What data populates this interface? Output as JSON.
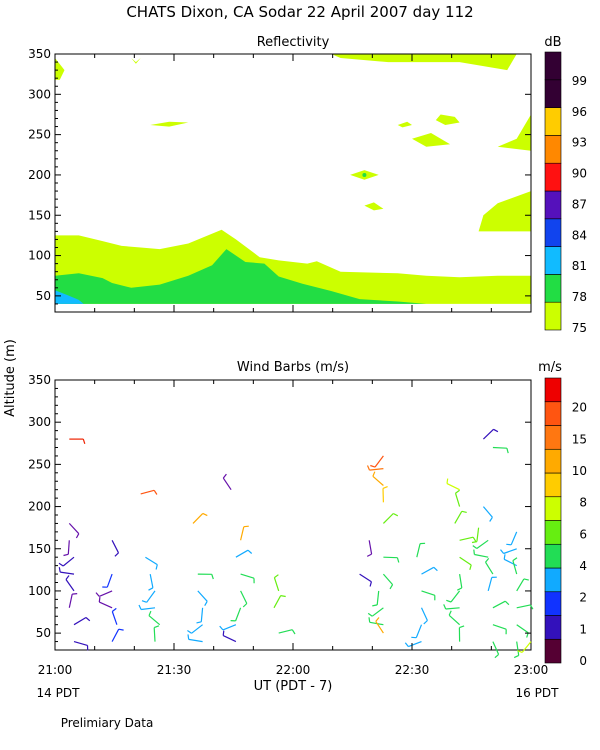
{
  "title": "CHATS Dixon, CA  Sodar  22 April 2007  day 112",
  "panels": {
    "reflectivity": {
      "title": "Reflectivity",
      "unit": "dB"
    },
    "wind": {
      "title": "Wind Barbs (m/s)",
      "unit": "m/s"
    }
  },
  "ylabel": "Altitude (m)",
  "xlabel": "UT  (PDT - 7)",
  "x_ticks": [
    "21:00",
    "21:30",
    "22:00",
    "22:30",
    "23:00"
  ],
  "x_left_note": "14 PDT",
  "x_right_note": "16 PDT",
  "footer_note": "Prelimiary Data",
  "y_ticks": [
    "50",
    "100",
    "150",
    "200",
    "250",
    "300",
    "350"
  ],
  "chart_data": [
    {
      "type": "heatmap",
      "title": "Reflectivity",
      "ylim": [
        30,
        350
      ],
      "colorbar": {
        "unit": "dB",
        "labels": [
          "75",
          "78",
          "81",
          "84",
          "87",
          "90",
          "93",
          "96",
          "99"
        ],
        "colors": [
          "#ccff00",
          "#22dd44",
          "#11bbff",
          "#1144ee",
          "#5511bb",
          "#ff1111",
          "#ff8800",
          "#ffcc00",
          "#330033",
          "#330033"
        ]
      },
      "regions": [
        {
          "level": "75",
          "color": "#ccff00",
          "points": [
            [
              0,
              40
            ],
            [
              0,
              125
            ],
            [
              5,
              125
            ],
            [
              10,
              118
            ],
            [
              14,
              112
            ],
            [
              18,
              110
            ],
            [
              22,
              108
            ],
            [
              28,
              115
            ],
            [
              35,
              132
            ],
            [
              38,
              120
            ],
            [
              43,
              98
            ],
            [
              47,
              94
            ],
            [
              53,
              90
            ],
            [
              55,
              93
            ],
            [
              60,
              80
            ],
            [
              72,
              78
            ],
            [
              78,
              75
            ],
            [
              85,
              73
            ],
            [
              93,
              75
            ],
            [
              100,
              75
            ],
            [
              100,
              40
            ]
          ]
        },
        {
          "level": "75",
          "color": "#ccff00",
          "points": [
            [
              0,
              345
            ],
            [
              2,
              330
            ],
            [
              1,
              318
            ],
            [
              0,
              318
            ]
          ]
        },
        {
          "level": "75",
          "color": "#ccff00",
          "points": [
            [
              16,
              345
            ],
            [
              17,
              340
            ],
            [
              18,
              345
            ],
            [
              17,
              338
            ]
          ]
        },
        {
          "level": "75",
          "color": "#ccff00",
          "points": [
            [
              58,
              350
            ],
            [
              97,
              350
            ],
            [
              95,
              330
            ],
            [
              85,
              340
            ],
            [
              70,
              340
            ],
            [
              60,
              345
            ]
          ]
        },
        {
          "level": "75",
          "color": "#ccff00",
          "points": [
            [
              81,
              275
            ],
            [
              84,
              272
            ],
            [
              85,
              265
            ],
            [
              82,
              262
            ],
            [
              80,
              268
            ]
          ]
        },
        {
          "level": "75",
          "color": "#ccff00",
          "points": [
            [
              100,
              275
            ],
            [
              97,
              245
            ],
            [
              93,
              235
            ],
            [
              100,
              230
            ]
          ]
        },
        {
          "level": "75",
          "color": "#ccff00",
          "points": [
            [
              20,
              262
            ],
            [
              24,
              266
            ],
            [
              28,
              265
            ],
            [
              24,
              260
            ]
          ]
        },
        {
          "level": "75",
          "color": "#ccff00",
          "points": [
            [
              72,
              262
            ],
            [
              74,
              266
            ],
            [
              75,
              262
            ],
            [
              73,
              259
            ]
          ]
        },
        {
          "level": "75",
          "color": "#ccff00",
          "points": [
            [
              75,
              245
            ],
            [
              79,
              252
            ],
            [
              83,
              238
            ],
            [
              78,
              235
            ]
          ]
        },
        {
          "level": "75",
          "color": "#ccff00",
          "points": [
            [
              62,
              200
            ],
            [
              65,
              206
            ],
            [
              68,
              200
            ],
            [
              65,
              194
            ]
          ]
        },
        {
          "level": "75",
          "color": "#ccff00",
          "points": [
            [
              65,
              162
            ],
            [
              67,
              166
            ],
            [
              69,
              158
            ],
            [
              67,
              156
            ]
          ]
        },
        {
          "level": "75",
          "color": "#ccff00",
          "points": [
            [
              89,
              130
            ],
            [
              90,
              150
            ],
            [
              93,
              165
            ],
            [
              100,
              180
            ],
            [
              100,
              130
            ]
          ]
        },
        {
          "level": "78",
          "color": "#22dd44",
          "points": [
            [
              0,
              40
            ],
            [
              0,
              75
            ],
            [
              5,
              78
            ],
            [
              10,
              72
            ],
            [
              12,
              66
            ],
            [
              16,
              60
            ],
            [
              22,
              64
            ],
            [
              28,
              75
            ],
            [
              33,
              88
            ],
            [
              36,
              108
            ],
            [
              40,
              92
            ],
            [
              44,
              90
            ],
            [
              47,
              74
            ],
            [
              52,
              65
            ],
            [
              58,
              56
            ],
            [
              64,
              46
            ],
            [
              72,
              43
            ],
            [
              78,
              40
            ]
          ]
        },
        {
          "level": "81",
          "color": "#11bbff",
          "points": [
            [
              0,
              40
            ],
            [
              0,
              57
            ],
            [
              3,
              50
            ],
            [
              5,
              45
            ],
            [
              6,
              40
            ]
          ]
        }
      ]
    },
    {
      "type": "scatter",
      "title": "Wind Barbs (m/s)",
      "ylim": [
        30,
        350
      ],
      "xlabel": "UT  (PDT - 7)",
      "ylabel": "Altitude (m)",
      "colorbar": {
        "unit": "m/s",
        "labels": [
          "0",
          "1",
          "2",
          "4",
          "6",
          "8",
          "10",
          "15",
          "20"
        ],
        "colors": [
          "#550033",
          "#3311bb",
          "#1133ff",
          "#11aaff",
          "#22dd55",
          "#66ee11",
          "#ccff00",
          "#ffcc00",
          "#ffaa00",
          "#ff7711",
          "#ff5511",
          "#ee0000"
        ]
      },
      "barbs": [
        {
          "x": 3,
          "y": 280,
          "color": "#ee2200"
        },
        {
          "x": 3,
          "y": 180,
          "color": "#6611aa"
        },
        {
          "x": 3,
          "y": 160,
          "color": "#6611aa"
        },
        {
          "x": 4,
          "y": 140,
          "color": "#3311bb"
        },
        {
          "x": 4,
          "y": 120,
          "color": "#3311bb"
        },
        {
          "x": 4,
          "y": 100,
          "color": "#3311bb"
        },
        {
          "x": 3,
          "y": 80,
          "color": "#6611aa"
        },
        {
          "x": 4,
          "y": 60,
          "color": "#3311bb"
        },
        {
          "x": 4,
          "y": 40,
          "color": "#3311bb"
        },
        {
          "x": 12,
          "y": 160,
          "color": "#3311bb"
        },
        {
          "x": 12,
          "y": 120,
          "color": "#1133ff"
        },
        {
          "x": 12,
          "y": 100,
          "color": "#6611aa"
        },
        {
          "x": 12,
          "y": 80,
          "color": "#6611aa"
        },
        {
          "x": 13,
          "y": 60,
          "color": "#1133ff"
        },
        {
          "x": 12,
          "y": 40,
          "color": "#1133ff"
        },
        {
          "x": 18,
          "y": 215,
          "color": "#ff5511"
        },
        {
          "x": 19,
          "y": 140,
          "color": "#11aaff"
        },
        {
          "x": 20,
          "y": 120,
          "color": "#11aaff"
        },
        {
          "x": 21,
          "y": 100,
          "color": "#11aaff"
        },
        {
          "x": 21,
          "y": 80,
          "color": "#11aaff"
        },
        {
          "x": 22,
          "y": 60,
          "color": "#22dd55"
        },
        {
          "x": 21,
          "y": 40,
          "color": "#22dd55"
        },
        {
          "x": 29,
          "y": 180,
          "color": "#ffaa00"
        },
        {
          "x": 30,
          "y": 120,
          "color": "#22dd55"
        },
        {
          "x": 30,
          "y": 100,
          "color": "#11aaff"
        },
        {
          "x": 31,
          "y": 80,
          "color": "#11aaff"
        },
        {
          "x": 31,
          "y": 60,
          "color": "#11aaff"
        },
        {
          "x": 31,
          "y": 40,
          "color": "#11aaff"
        },
        {
          "x": 37,
          "y": 220,
          "color": "#6611aa"
        },
        {
          "x": 39,
          "y": 160,
          "color": "#ffaa00"
        },
        {
          "x": 38,
          "y": 140,
          "color": "#11aaff"
        },
        {
          "x": 39,
          "y": 120,
          "color": "#22dd55"
        },
        {
          "x": 39,
          "y": 100,
          "color": "#22dd55"
        },
        {
          "x": 39,
          "y": 80,
          "color": "#22dd55"
        },
        {
          "x": 38,
          "y": 60,
          "color": "#11aaff"
        },
        {
          "x": 38,
          "y": 40,
          "color": "#3311bb"
        },
        {
          "x": 47,
          "y": 100,
          "color": "#66ee11"
        },
        {
          "x": 46,
          "y": 80,
          "color": "#66ee11"
        },
        {
          "x": 47,
          "y": 50,
          "color": "#22dd55"
        },
        {
          "x": 64,
          "y": 120,
          "color": "#3311bb"
        },
        {
          "x": 66,
          "y": 160,
          "color": "#6611aa"
        },
        {
          "x": 69,
          "y": 260,
          "color": "#ff5511"
        },
        {
          "x": 69,
          "y": 245,
          "color": "#ff7711"
        },
        {
          "x": 69,
          "y": 225,
          "color": "#ffaa00"
        },
        {
          "x": 69,
          "y": 205,
          "color": "#ffcc00"
        },
        {
          "x": 69,
          "y": 180,
          "color": "#66ee11"
        },
        {
          "x": 69,
          "y": 140,
          "color": "#22dd55"
        },
        {
          "x": 69,
          "y": 120,
          "color": "#22dd55"
        },
        {
          "x": 68,
          "y": 100,
          "color": "#22dd55"
        },
        {
          "x": 69,
          "y": 80,
          "color": "#22dd55"
        },
        {
          "x": 69,
          "y": 60,
          "color": "#22dd55"
        },
        {
          "x": 69,
          "y": 50,
          "color": "#ffaa00"
        },
        {
          "x": 76,
          "y": 140,
          "color": "#22dd55"
        },
        {
          "x": 77,
          "y": 120,
          "color": "#11aaff"
        },
        {
          "x": 77,
          "y": 100,
          "color": "#22dd55"
        },
        {
          "x": 77,
          "y": 80,
          "color": "#11aaff"
        },
        {
          "x": 77,
          "y": 60,
          "color": "#11aaff"
        },
        {
          "x": 77,
          "y": 40,
          "color": "#11aaff"
        },
        {
          "x": 85,
          "y": 220,
          "color": "#ccff00"
        },
        {
          "x": 85,
          "y": 200,
          "color": "#66ee11"
        },
        {
          "x": 84,
          "y": 180,
          "color": "#66ee11"
        },
        {
          "x": 85,
          "y": 160,
          "color": "#66ee11"
        },
        {
          "x": 85,
          "y": 140,
          "color": "#66ee11"
        },
        {
          "x": 85,
          "y": 120,
          "color": "#22dd55"
        },
        {
          "x": 85,
          "y": 100,
          "color": "#22dd55"
        },
        {
          "x": 85,
          "y": 80,
          "color": "#22dd55"
        },
        {
          "x": 85,
          "y": 60,
          "color": "#22dd55"
        },
        {
          "x": 85,
          "y": 40,
          "color": "#22dd55"
        },
        {
          "x": 90,
          "y": 280,
          "color": "#3311bb"
        },
        {
          "x": 92,
          "y": 270,
          "color": "#22dd55"
        },
        {
          "x": 90,
          "y": 200,
          "color": "#11aaff"
        },
        {
          "x": 89,
          "y": 175,
          "color": "#66ee11"
        },
        {
          "x": 91,
          "y": 160,
          "color": "#22dd55"
        },
        {
          "x": 91,
          "y": 140,
          "color": "#22dd55"
        },
        {
          "x": 92,
          "y": 120,
          "color": "#22dd55"
        },
        {
          "x": 91,
          "y": 100,
          "color": "#11aaff"
        },
        {
          "x": 92,
          "y": 80,
          "color": "#22dd55"
        },
        {
          "x": 92,
          "y": 60,
          "color": "#22dd55"
        },
        {
          "x": 92,
          "y": 40,
          "color": "#22dd55"
        },
        {
          "x": 97,
          "y": 170,
          "color": "#11aaff"
        },
        {
          "x": 97,
          "y": 150,
          "color": "#11aaff"
        },
        {
          "x": 97,
          "y": 130,
          "color": "#11aaff"
        },
        {
          "x": 97,
          "y": 120,
          "color": "#22dd55"
        },
        {
          "x": 97,
          "y": 100,
          "color": "#22dd55"
        },
        {
          "x": 97,
          "y": 80,
          "color": "#22dd55"
        },
        {
          "x": 97,
          "y": 60,
          "color": "#22dd55"
        },
        {
          "x": 97,
          "y": 40,
          "color": "#22dd55"
        },
        {
          "x": 100,
          "y": 40,
          "color": "#ccff00"
        }
      ]
    }
  ]
}
